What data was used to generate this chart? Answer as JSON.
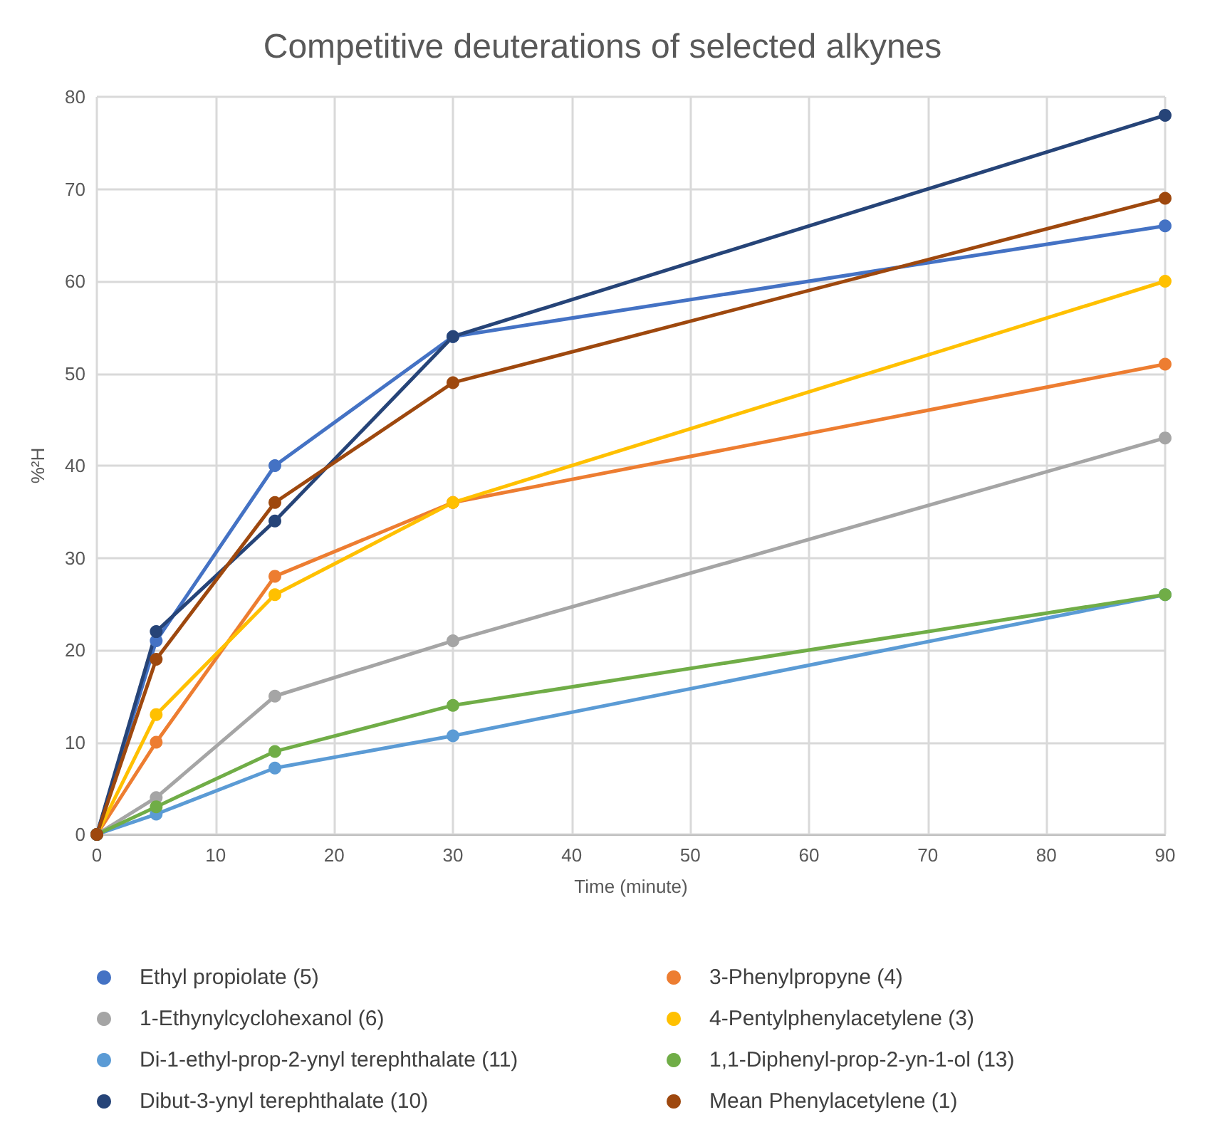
{
  "chart_data": {
    "type": "line",
    "title": "Competitive deuterations of selected alkynes",
    "xlabel": "Time (minute)",
    "ylabel": "%²H",
    "x": [
      0,
      5,
      15,
      30,
      90
    ],
    "xlim": [
      0,
      90
    ],
    "xticks": [
      0,
      10,
      20,
      30,
      40,
      50,
      60,
      70,
      80,
      90
    ],
    "ylim": [
      0,
      80
    ],
    "yticks": [
      0,
      10,
      20,
      30,
      40,
      50,
      60,
      70,
      80
    ],
    "grid": true,
    "legend": "bottom",
    "marker": "circle",
    "line_style": "solid",
    "series": [
      {
        "name": "Ethyl propiolate (5)",
        "color": "#4472c4",
        "values": [
          0,
          21,
          40,
          54,
          66
        ]
      },
      {
        "name": "3-Phenylpropyne (4)",
        "color": "#ed7d31",
        "values": [
          0,
          10,
          28,
          36,
          51
        ]
      },
      {
        "name": "1-Ethynylcyclohexanol (6)",
        "color": "#a5a5a5",
        "values": [
          0,
          4,
          15,
          21,
          43
        ]
      },
      {
        "name": "4-Pentylphenylacetylene (3)",
        "color": "#ffc000",
        "values": [
          0,
          13,
          26,
          36,
          60
        ]
      },
      {
        "name": "Di-1-ethyl-prop-2-ynyl terephthalate (11)",
        "color": "#5b9bd5",
        "values": [
          0,
          2.2,
          7.2,
          10.7,
          26
        ]
      },
      {
        "name": "1,1-Diphenyl-prop-2-yn-1-ol (13)",
        "color": "#70ad47",
        "values": [
          0,
          3,
          9,
          14,
          26
        ]
      },
      {
        "name": "Dibut-3-ynyl terephthalate (10)",
        "color": "#264478",
        "values": [
          0,
          22,
          34,
          54,
          78
        ]
      },
      {
        "name": "Mean Phenylacetylene (1)",
        "color": "#9e480e",
        "values": [
          0,
          19,
          36,
          49,
          69
        ]
      }
    ]
  }
}
